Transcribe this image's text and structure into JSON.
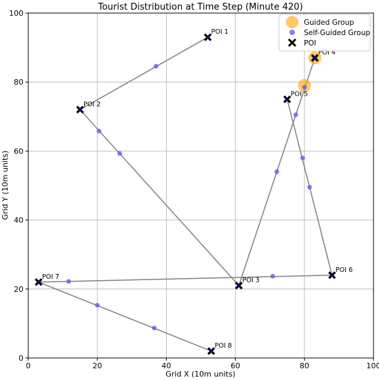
{
  "chart_data": {
    "type": "scatter",
    "title": "Tourist Distribution at Time Step (Minute 420)",
    "xlabel": "Grid X (10m units)",
    "ylabel": "Grid Y (10m units)",
    "xlim": [
      0,
      100
    ],
    "ylim": [
      0,
      100
    ],
    "xticks": [
      0,
      20,
      40,
      60,
      80,
      100
    ],
    "yticks": [
      0,
      20,
      40,
      60,
      80,
      100
    ],
    "grid": true,
    "legend_position": "top-right",
    "colors": {
      "route": "#808080",
      "self_guided": "#5a5ae6",
      "guided": "#ffa500",
      "poi": "#000000",
      "poi_inner": "#0000ff"
    },
    "routes": [
      [
        [
          15,
          72
        ],
        [
          52,
          93
        ]
      ],
      [
        [
          15,
          72
        ],
        [
          61,
          21
        ]
      ],
      [
        [
          61,
          21
        ],
        [
          83,
          87
        ]
      ],
      [
        [
          75,
          75
        ],
        [
          88,
          24
        ]
      ],
      [
        [
          3,
          22
        ],
        [
          88,
          24
        ]
      ],
      [
        [
          3,
          22
        ],
        [
          53,
          2
        ]
      ]
    ],
    "series": [
      {
        "name": "Guided Group",
        "marker": "large-circle",
        "points": [
          [
            83,
            87
          ],
          [
            80,
            79
          ]
        ]
      },
      {
        "name": "Self-Guided Group",
        "marker": "small-circle",
        "points": [
          [
            37,
            84.6
          ],
          [
            20.5,
            65.8
          ],
          [
            26.5,
            59.3
          ],
          [
            72,
            54
          ],
          [
            77.5,
            70.5
          ],
          [
            79.5,
            58
          ],
          [
            81.5,
            49.5
          ],
          [
            70.8,
            23.7
          ],
          [
            11.7,
            22.2
          ],
          [
            20,
            15.3
          ],
          [
            36.5,
            8.7
          ],
          [
            80,
            78.5
          ],
          [
            83,
            87
          ]
        ]
      },
      {
        "name": "POI",
        "marker": "x",
        "points": [
          {
            "label": "POI 1",
            "x": 52,
            "y": 93
          },
          {
            "label": "POI 2",
            "x": 15,
            "y": 72
          },
          {
            "label": "POI 3",
            "x": 61,
            "y": 21
          },
          {
            "label": "POI 4",
            "x": 83,
            "y": 87
          },
          {
            "label": "POI 5",
            "x": 75,
            "y": 75
          },
          {
            "label": "POI 6",
            "x": 88,
            "y": 24
          },
          {
            "label": "POI 7",
            "x": 3,
            "y": 22
          },
          {
            "label": "POI 8",
            "x": 53,
            "y": 2
          }
        ]
      }
    ]
  }
}
